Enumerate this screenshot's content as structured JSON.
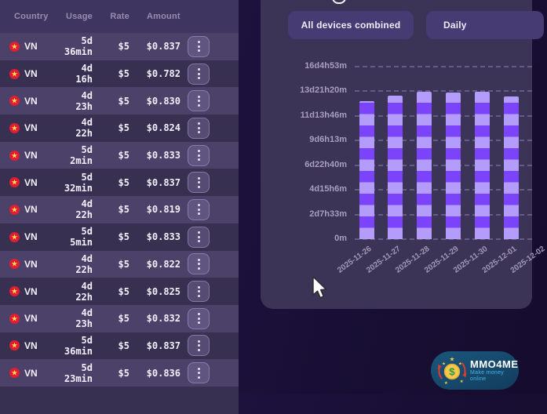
{
  "table": {
    "headers": [
      "Country",
      "Usage",
      "Rate",
      "Amount"
    ],
    "rows": [
      {
        "country": "VN",
        "usage": [
          "5d",
          "36min"
        ],
        "rate": "$5",
        "amount": "$0.837"
      },
      {
        "country": "VN",
        "usage": [
          "4d",
          "16h"
        ],
        "rate": "$5",
        "amount": "$0.782"
      },
      {
        "country": "VN",
        "usage": [
          "4d",
          "23h"
        ],
        "rate": "$5",
        "amount": "$0.830"
      },
      {
        "country": "VN",
        "usage": [
          "4d",
          "22h"
        ],
        "rate": "$5",
        "amount": "$0.824"
      },
      {
        "country": "VN",
        "usage": [
          "5d",
          "2min"
        ],
        "rate": "$5",
        "amount": "$0.833"
      },
      {
        "country": "VN",
        "usage": [
          "5d",
          "32min"
        ],
        "rate": "$5",
        "amount": "$0.837"
      },
      {
        "country": "VN",
        "usage": [
          "4d",
          "22h"
        ],
        "rate": "$5",
        "amount": "$0.819"
      },
      {
        "country": "VN",
        "usage": [
          "5d",
          "5min"
        ],
        "rate": "$5",
        "amount": "$0.833"
      },
      {
        "country": "VN",
        "usage": [
          "4d",
          "22h"
        ],
        "rate": "$5",
        "amount": "$0.822"
      },
      {
        "country": "VN",
        "usage": [
          "4d",
          "22h"
        ],
        "rate": "$5",
        "amount": "$0.825"
      },
      {
        "country": "VN",
        "usage": [
          "4d",
          "23h"
        ],
        "rate": "$5",
        "amount": "$0.832"
      },
      {
        "country": "VN",
        "usage": [
          "5d",
          "36min"
        ],
        "rate": "$5",
        "amount": "$0.837"
      },
      {
        "country": "VN",
        "usage": [
          "5d",
          "23min"
        ],
        "rate": "$5",
        "amount": "$0.836"
      }
    ]
  },
  "chart_panel": {
    "device_filter_button": "All devices combined",
    "interval_button": "Daily"
  },
  "chart_data": {
    "type": "bar",
    "stacked": true,
    "title": "",
    "xlabel": "",
    "ylabel": "",
    "categories": [
      "2025-11-26",
      "2025-11-27",
      "2025-11-28",
      "2025-11-29",
      "2025-11-30",
      "2025-12-01",
      "2025-12-02"
    ],
    "values_hours": [
      311,
      323.5,
      332.5,
      331,
      332.5,
      322,
      null
    ],
    "values_label_estimate": [
      "12d23h",
      "13d11h",
      "13d20h",
      "13d19h",
      "13d20h",
      "13d10h",
      ""
    ],
    "yticks": [
      "0m",
      "2d7h33m",
      "4d15h6m",
      "6d22h40m",
      "9d6h13m",
      "11d13h46m",
      "13d21h20m",
      "16d4h53m"
    ],
    "yticks_hours": [
      0,
      55.55,
      111.1,
      166.65,
      222.2,
      277.75,
      333.3,
      388.88
    ],
    "ylim_hours": [
      0,
      388.88
    ],
    "grid": "dashed-horizontal",
    "legend": "none",
    "last_category_partially_cut_off": true,
    "colors": {
      "segment_light": "#b49cfc",
      "segment_dark": "#7b43fa"
    }
  },
  "logo": {
    "name": "MMO4ME",
    "tagline": "Make money online",
    "coin_symbol": "$"
  },
  "colors": {
    "page_bg": "#1a1038",
    "panel_bg_left": "#3e3660",
    "panel_bg_chart": "#3b3457",
    "row_light": "#4b4169",
    "row_dark": "#373051",
    "button_bg": "#463b72",
    "header_text": "#968daf",
    "axis_text": "#a79fbd",
    "flag_red": "#e11d35",
    "flag_star": "#ffe14d",
    "logo_bg": "#164a6e",
    "logo_tagline": "#45b5e6"
  }
}
